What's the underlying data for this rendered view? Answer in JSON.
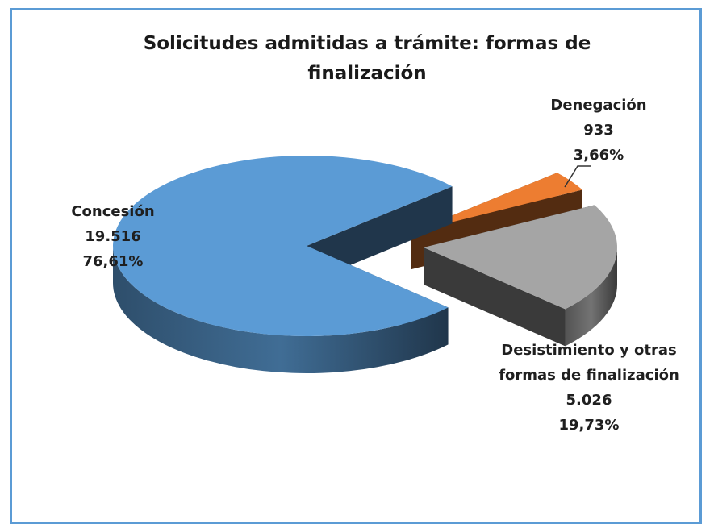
{
  "chart_data": {
    "type": "pie",
    "title": "Solicitudes admitidas a trámite: formas de finalización",
    "categories": [
      "Concesión",
      "Denegación",
      "Desistimiento y otras formas de finalización"
    ],
    "values": [
      19516,
      933,
      5026
    ],
    "value_labels": [
      "19.516",
      "933",
      "5.026"
    ],
    "percents": [
      76.61,
      3.66,
      19.73
    ],
    "percent_labels": [
      "76,61%",
      "3,66%",
      "19,73%"
    ],
    "colors": [
      "#5b9bd5",
      "#ed7d31",
      "#a5a5a5"
    ],
    "three_d": true
  }
}
